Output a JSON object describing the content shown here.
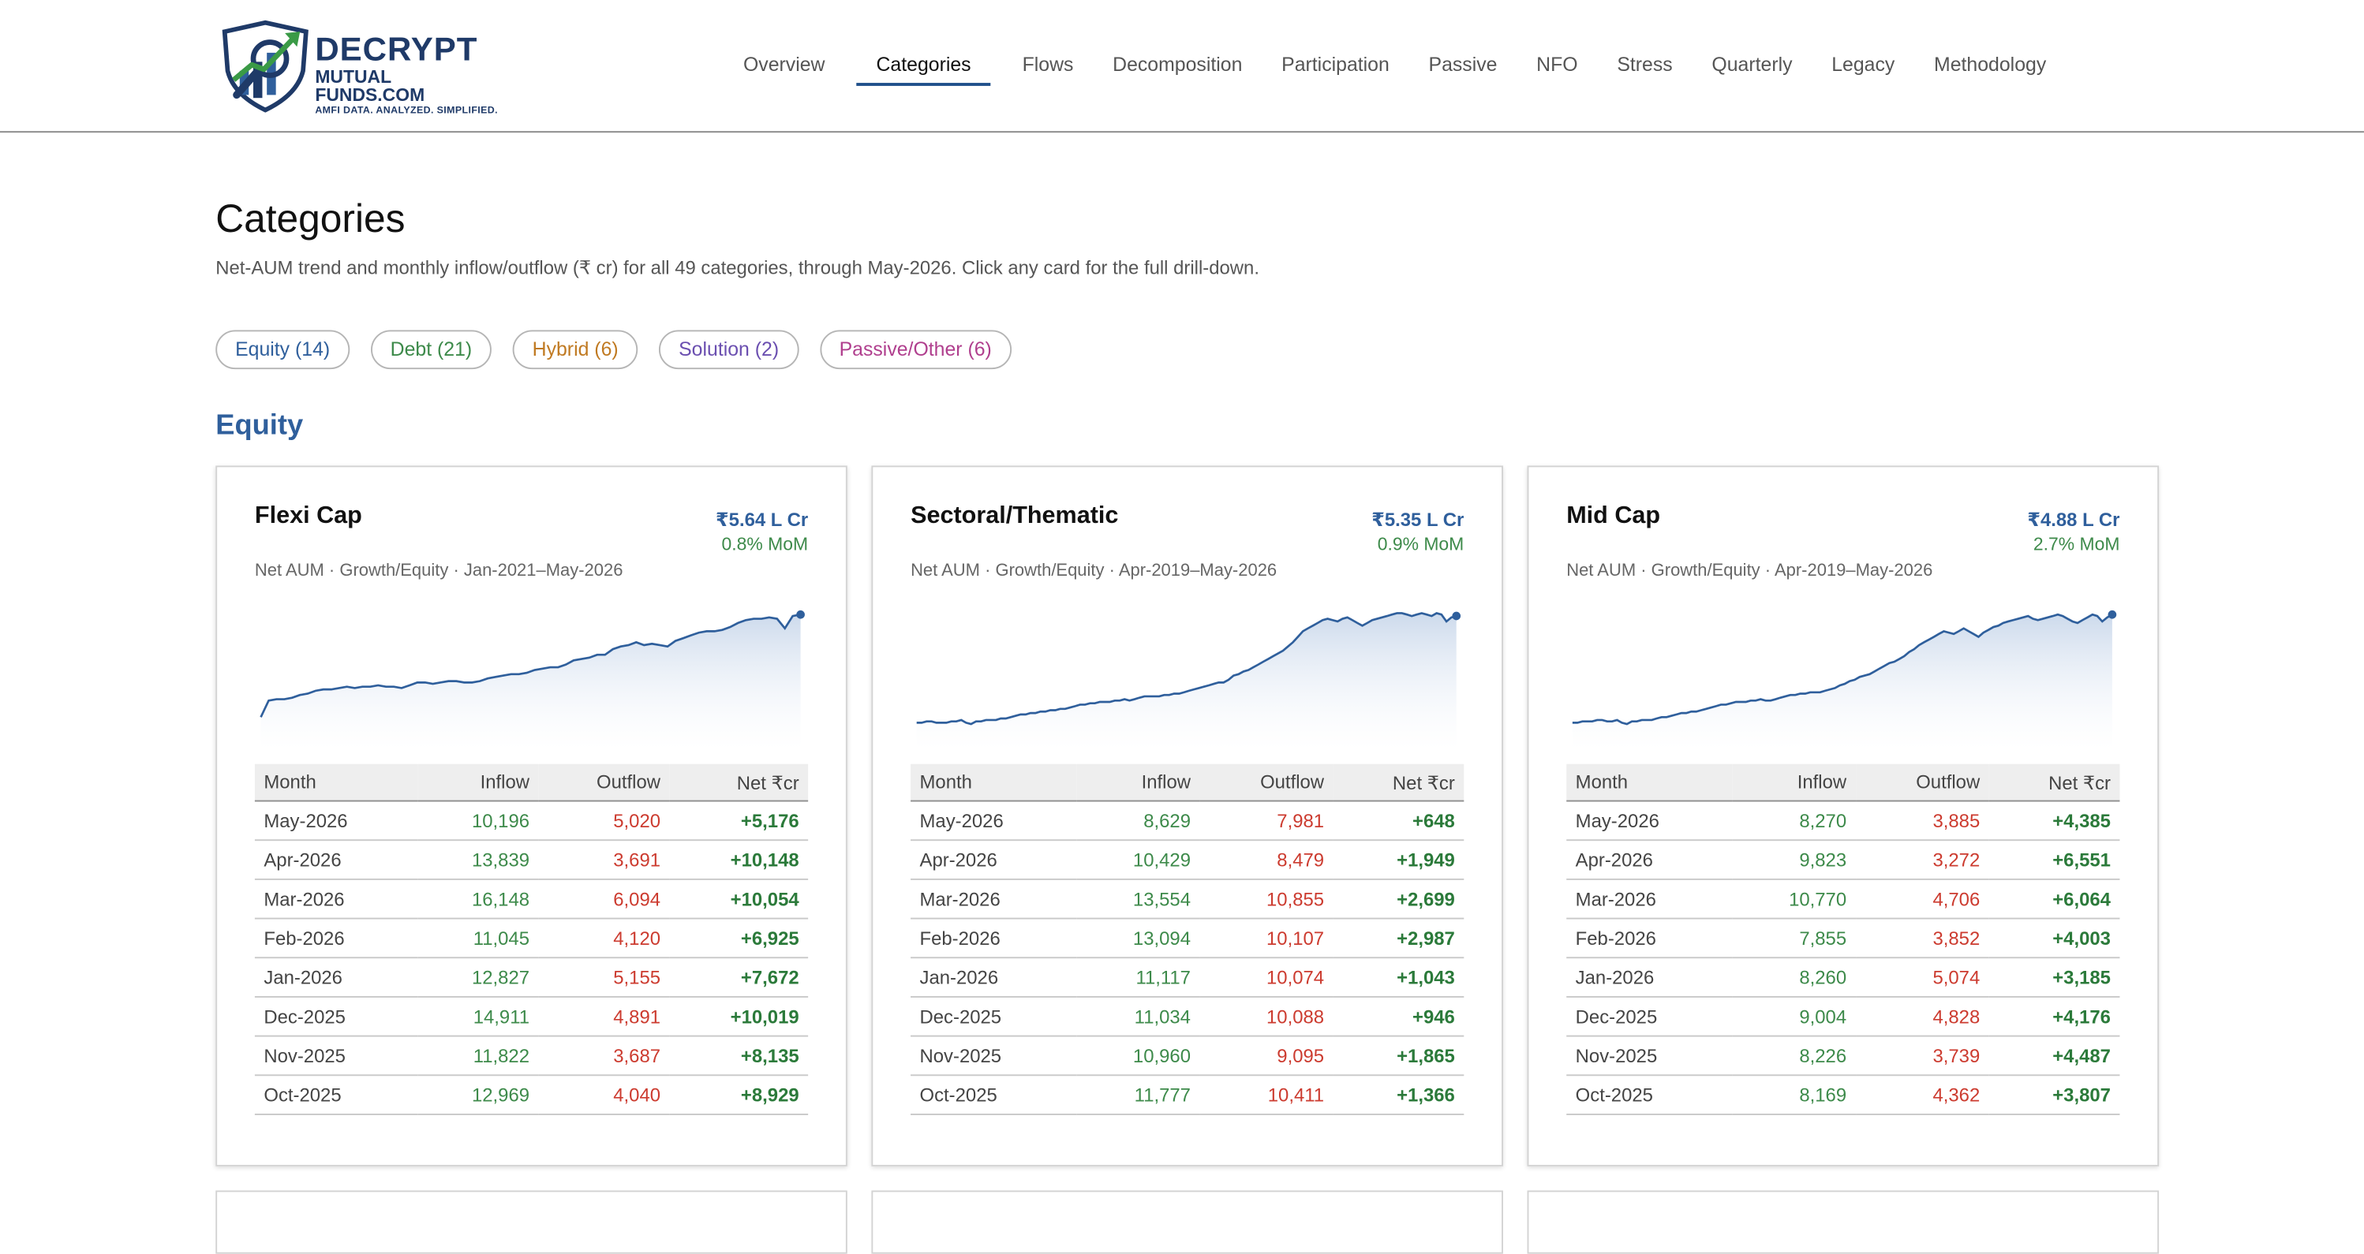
{
  "logo": {
    "line1": "DECRYPT",
    "line2": "MUTUAL FUNDS.COM",
    "line3": "AMFI DATA. ANALYZED. SIMPLIFIED.",
    "icon": "shield-chart-logo-icon"
  },
  "nav": {
    "items": [
      "Overview",
      "Categories",
      "Flows",
      "Decomposition",
      "Participation",
      "Passive",
      "NFO",
      "Stress",
      "Quarterly",
      "Legacy",
      "Methodology"
    ],
    "active": "Categories"
  },
  "page": {
    "title": "Categories",
    "subtitle": "Net-AUM trend and monthly inflow/outflow (₹ cr) for all 49 categories, through May-2026. Click any card for the full drill-down."
  },
  "filters": [
    {
      "label": "Equity (14)",
      "color": "#2f5f9c"
    },
    {
      "label": "Debt (21)",
      "color": "#3d8a4a"
    },
    {
      "label": "Hybrid (6)",
      "color": "#c07a22"
    },
    {
      "label": "Solution (2)",
      "color": "#6b4fb0"
    },
    {
      "label": "Passive/Other (6)",
      "color": "#b03f8e"
    }
  ],
  "section": {
    "title": "Equity",
    "color": "#2f5f9c"
  },
  "colors": {
    "line": "#2f5f9c",
    "fill_top": "#c7d6ea",
    "inflow": "#3d8a4a",
    "outflow": "#cc3b2f",
    "net": "#2b7a3a"
  },
  "table_headers": [
    "Month",
    "Inflow",
    "Outflow",
    "Net ₹cr"
  ],
  "cards": [
    {
      "name": "Flexi Cap",
      "aum": "₹5.64 L Cr",
      "mom": "0.8% MoM",
      "desc": "Net AUM · Growth/Equity · Jan-2021–May-2026",
      "trend": [
        24,
        36,
        37,
        37,
        38,
        40,
        41,
        43,
        44,
        44,
        45,
        46,
        45,
        46,
        46,
        47,
        46,
        46,
        45,
        47,
        49,
        49,
        48,
        49,
        50,
        50,
        49,
        49,
        50,
        52,
        53,
        54,
        55,
        55,
        56,
        58,
        59,
        60,
        60,
        62,
        65,
        66,
        67,
        69,
        69,
        73,
        75,
        76,
        78,
        76,
        77,
        76,
        75,
        79,
        81,
        83,
        85,
        86,
        86,
        87,
        89,
        92,
        94,
        95,
        95,
        96,
        95,
        88,
        97,
        98
      ],
      "rows": [
        [
          "May-2026",
          "10,196",
          "5,020",
          "+5,176"
        ],
        [
          "Apr-2026",
          "13,839",
          "3,691",
          "+10,148"
        ],
        [
          "Mar-2026",
          "16,148",
          "6,094",
          "+10,054"
        ],
        [
          "Feb-2026",
          "11,045",
          "4,120",
          "+6,925"
        ],
        [
          "Jan-2026",
          "12,827",
          "5,155",
          "+7,672"
        ],
        [
          "Dec-2025",
          "14,911",
          "4,891",
          "+10,019"
        ],
        [
          "Nov-2025",
          "11,822",
          "3,687",
          "+8,135"
        ],
        [
          "Oct-2025",
          "12,969",
          "4,040",
          "+8,929"
        ]
      ]
    },
    {
      "name": "Sectoral/Thematic",
      "aum": "₹5.35 L Cr",
      "mom": "0.9% MoM",
      "desc": "Net AUM · Growth/Equity · Apr-2019–May-2026",
      "trend": [
        20,
        20,
        21,
        21,
        20,
        20,
        20,
        21,
        21,
        22,
        20,
        19,
        21,
        21,
        22,
        22,
        22,
        23,
        23,
        24,
        25,
        26,
        26,
        27,
        27,
        28,
        28,
        29,
        29,
        30,
        30,
        31,
        32,
        33,
        33,
        34,
        34,
        35,
        35,
        35,
        36,
        36,
        37,
        36,
        37,
        38,
        39,
        39,
        39,
        39,
        40,
        40,
        41,
        41,
        42,
        43,
        44,
        45,
        46,
        47,
        48,
        49,
        49,
        51,
        54,
        55,
        57,
        58,
        60,
        62,
        64,
        66,
        68,
        70,
        72,
        75,
        78,
        82,
        86,
        88,
        90,
        92,
        94,
        95,
        94,
        93,
        95,
        96,
        94,
        92,
        90,
        92,
        94,
        95,
        96,
        97,
        98,
        99,
        99,
        98,
        97,
        98,
        99,
        98,
        97,
        99,
        98,
        93,
        96,
        97
      ],
      "rows": [
        [
          "May-2026",
          "8,629",
          "7,981",
          "+648"
        ],
        [
          "Apr-2026",
          "10,429",
          "8,479",
          "+1,949"
        ],
        [
          "Mar-2026",
          "13,554",
          "10,855",
          "+2,699"
        ],
        [
          "Feb-2026",
          "13,094",
          "10,107",
          "+2,987"
        ],
        [
          "Jan-2026",
          "11,117",
          "10,074",
          "+1,043"
        ],
        [
          "Dec-2025",
          "11,034",
          "10,088",
          "+946"
        ],
        [
          "Nov-2025",
          "10,960",
          "9,095",
          "+1,865"
        ],
        [
          "Oct-2025",
          "11,777",
          "10,411",
          "+1,366"
        ]
      ]
    },
    {
      "name": "Mid Cap",
      "aum": "₹4.88 L Cr",
      "mom": "2.7% MoM",
      "desc": "Net AUM · Growth/Equity · Apr-2019–May-2026",
      "trend": [
        20,
        20,
        21,
        21,
        21,
        22,
        22,
        21,
        21,
        22,
        20,
        19,
        21,
        21,
        22,
        22,
        22,
        23,
        24,
        24,
        25,
        26,
        27,
        27,
        28,
        28,
        29,
        30,
        31,
        32,
        33,
        33,
        34,
        35,
        35,
        35,
        36,
        36,
        37,
        36,
        36,
        37,
        38,
        39,
        40,
        40,
        41,
        41,
        42,
        42,
        42,
        43,
        44,
        45,
        47,
        48,
        50,
        51,
        53,
        54,
        55,
        57,
        59,
        61,
        63,
        64,
        66,
        68,
        71,
        73,
        76,
        78,
        80,
        82,
        84,
        86,
        85,
        84,
        86,
        88,
        86,
        84,
        82,
        85,
        87,
        89,
        90,
        92,
        93,
        94,
        95,
        96,
        97,
        95,
        94,
        95,
        96,
        97,
        98,
        97,
        95,
        93,
        92,
        94,
        96,
        98,
        97,
        93,
        96,
        98
      ],
      "rows": [
        [
          "May-2026",
          "8,270",
          "3,885",
          "+4,385"
        ],
        [
          "Apr-2026",
          "9,823",
          "3,272",
          "+6,551"
        ],
        [
          "Mar-2026",
          "10,770",
          "4,706",
          "+6,064"
        ],
        [
          "Feb-2026",
          "7,855",
          "3,852",
          "+4,003"
        ],
        [
          "Jan-2026",
          "8,260",
          "5,074",
          "+3,185"
        ],
        [
          "Dec-2025",
          "9,004",
          "4,828",
          "+4,176"
        ],
        [
          "Nov-2025",
          "8,226",
          "3,739",
          "+4,487"
        ],
        [
          "Oct-2025",
          "8,169",
          "4,362",
          "+3,807"
        ]
      ]
    }
  ]
}
